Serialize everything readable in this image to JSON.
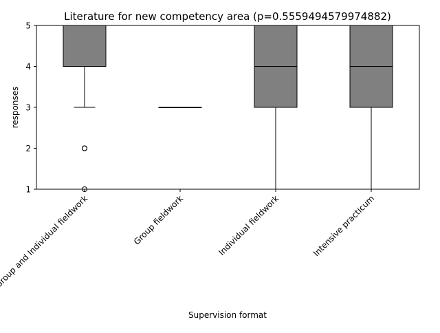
{
  "chart_data": {
    "type": "box",
    "title": "Literature for new competency area (p=0.5559494579974882)",
    "xlabel": "Supervision format",
    "ylabel": "responses",
    "ylim": [
      1,
      5
    ],
    "yticks": [
      1,
      2,
      3,
      4,
      5
    ],
    "categories": [
      "Group and Individual fieldwork",
      "Group fieldwork",
      "Individual fieldwork",
      "Intensive practicum"
    ],
    "boxes": [
      {
        "whisker_low": 3,
        "q1": 4,
        "median": 4,
        "q3": 5,
        "whisker_high": 5,
        "outliers": [
          2,
          2,
          1
        ]
      },
      {
        "whisker_low": 3,
        "q1": 3,
        "median": 3,
        "q3": 3,
        "whisker_high": 3,
        "outliers": []
      },
      {
        "whisker_low": 1,
        "q1": 3,
        "median": 4,
        "q3": 5,
        "whisker_high": 5,
        "outliers": []
      },
      {
        "whisker_low": 1,
        "q1": 3,
        "median": 4,
        "q3": 5,
        "whisker_high": 5,
        "outliers": []
      }
    ],
    "box_color": "#808080",
    "line_color": "#000000",
    "grid": false,
    "legend": false,
    "xtick_rotation": 45
  }
}
